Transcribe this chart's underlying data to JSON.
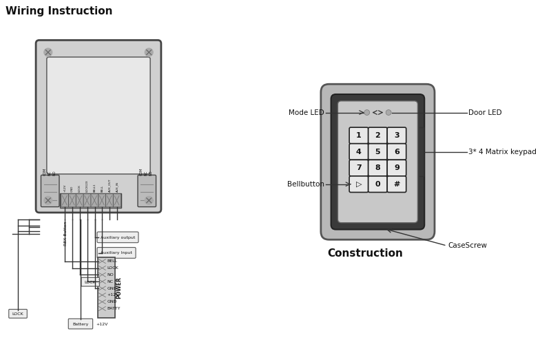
{
  "title_left": "Wiring Instruction",
  "title_right": "Construction",
  "bg_color": "#ffffff",
  "device_outer_color": "#d0d0d0",
  "device_inner_color": "#e8e8e8",
  "keypad_outer_color": "#b8b8b8",
  "keypad_dark_color": "#3a3a3a",
  "keypad_face_color": "#c8c8c8",
  "key_bg": "#e8e8e8",
  "key_border": "#222222",
  "power_labels": [
    "BELL",
    "LOCK",
    "NO",
    "NC",
    "GND",
    "+12V",
    "GND",
    "BATTY"
  ],
  "keys": [
    "1",
    "2",
    "3",
    "4",
    "5",
    "6",
    "7",
    "8",
    "9",
    "▷",
    "0",
    "#"
  ]
}
